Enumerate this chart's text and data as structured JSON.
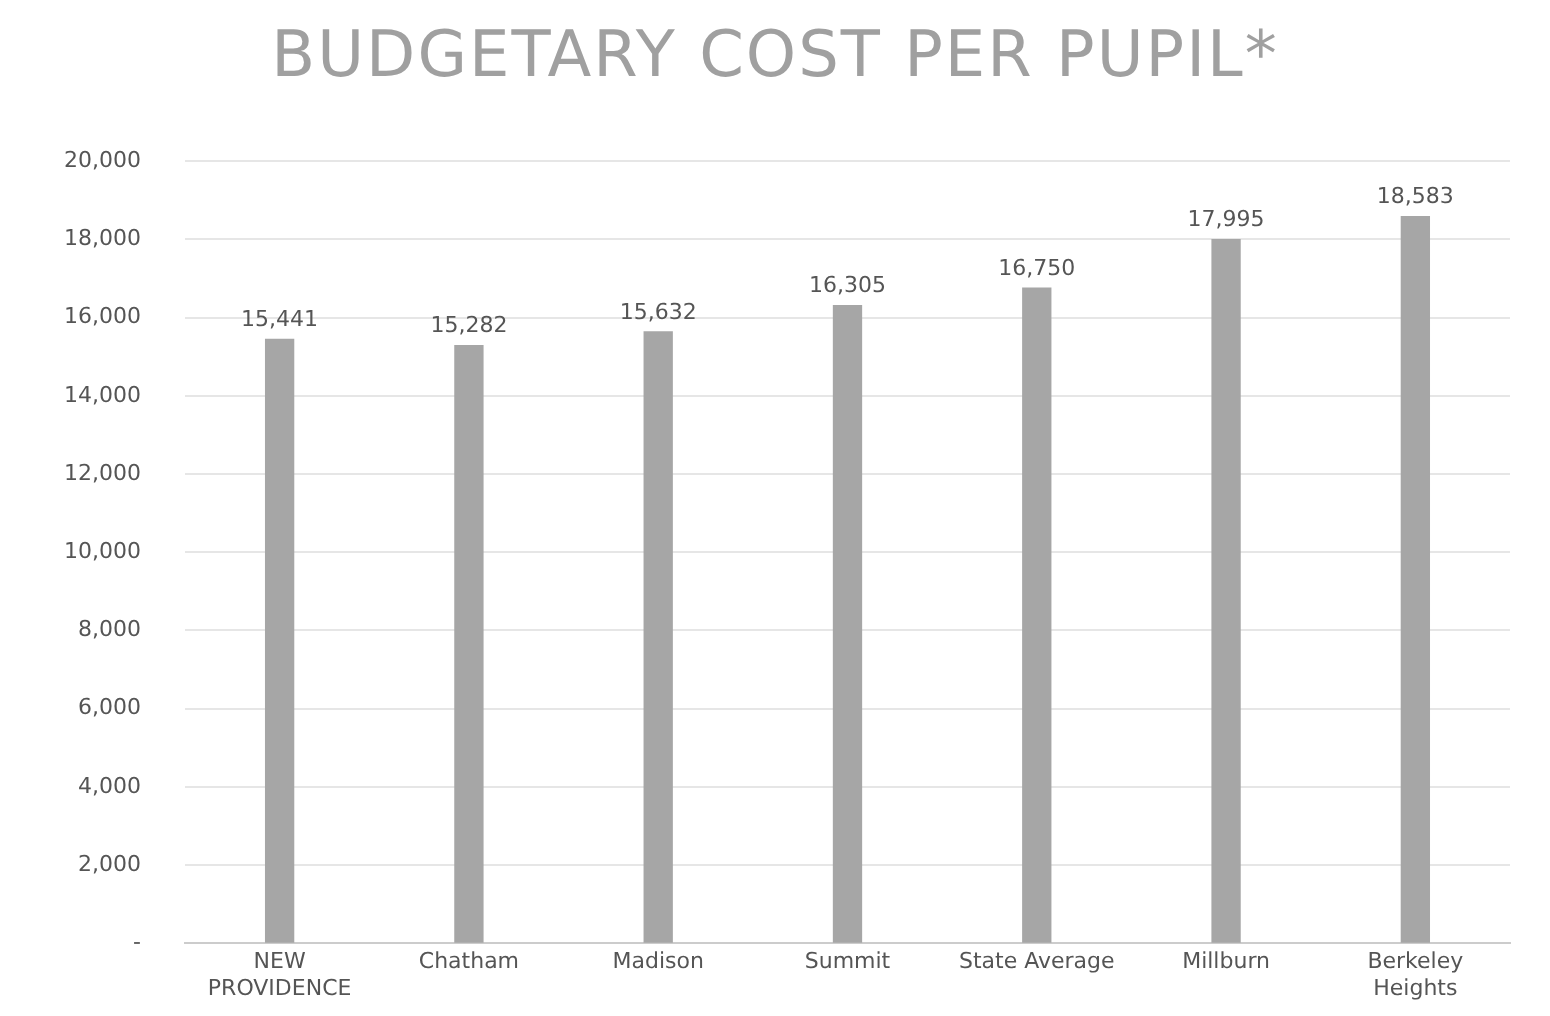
{
  "chart_data": {
    "type": "bar",
    "title": "BUDGETARY COST PER PUPIL*",
    "categories": [
      "NEW PROVIDENCE",
      "Chatham",
      "Madison",
      "Summit",
      "State Average",
      "Millburn",
      "Berkeley Heights"
    ],
    "values": [
      15441,
      15282,
      15632,
      16305,
      16750,
      17995,
      18583
    ],
    "color": "#a6a6a6",
    "value_labels": [
      "15,441",
      "15,282",
      "15,632",
      "16,305",
      "16,750",
      "17,995",
      "18,583"
    ],
    "ylim": [
      0,
      20000
    ],
    "yticks": [
      {
        "value": 0,
        "label": "-"
      },
      {
        "value": 2000,
        "label": "2,000"
      },
      {
        "value": 4000,
        "label": "4,000"
      },
      {
        "value": 6000,
        "label": "6,000"
      },
      {
        "value": 8000,
        "label": "8,000"
      },
      {
        "value": 10000,
        "label": "10,000"
      },
      {
        "value": 12000,
        "label": "12,000"
      },
      {
        "value": 14000,
        "label": "14,000"
      },
      {
        "value": 16000,
        "label": "16,000"
      },
      {
        "value": 18000,
        "label": "18,000"
      },
      {
        "value": 20000,
        "label": "20,000"
      }
    ],
    "grid": "y",
    "legend": false
  }
}
